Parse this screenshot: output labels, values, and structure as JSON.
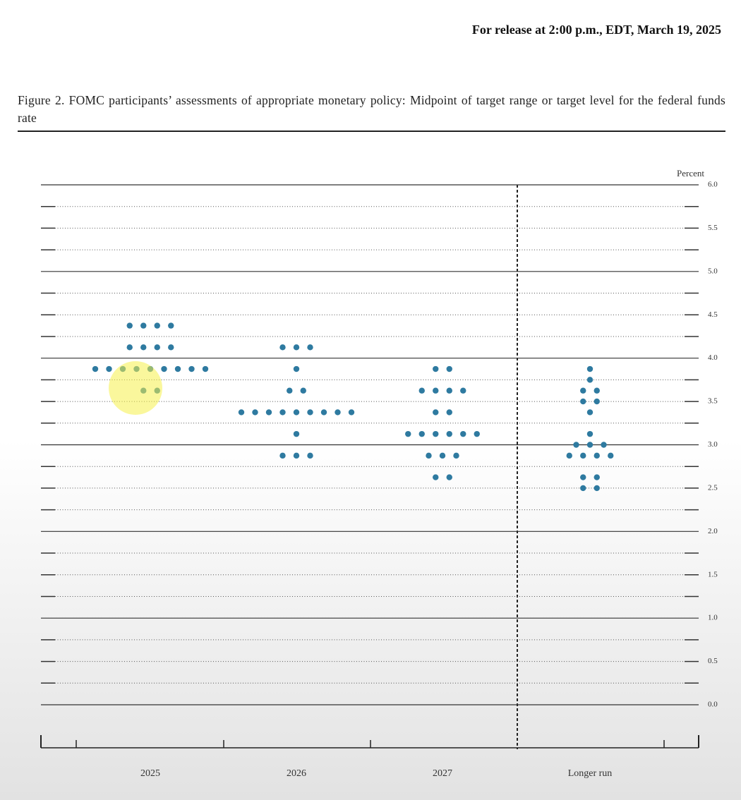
{
  "header": "For release at 2:00 p.m., EDT, March 19, 2025",
  "chart_data": {
    "type": "dot",
    "title": "Figure 2.  FOMC participants’ assessments of appropriate monetary policy:  Midpoint of target range or target level for the federal funds rate",
    "y_label": "Percent",
    "categories": [
      "2025",
      "2026",
      "2027",
      "Longer run"
    ],
    "values": [
      [
        4.375,
        4.375,
        4.375,
        4.375,
        4.125,
        4.125,
        4.125,
        4.125,
        3.875,
        3.875,
        3.875,
        3.875,
        3.875,
        3.875,
        3.875,
        3.875,
        3.875,
        3.625,
        3.625
      ],
      [
        4.125,
        4.125,
        4.125,
        3.875,
        3.625,
        3.625,
        3.375,
        3.375,
        3.375,
        3.375,
        3.375,
        3.375,
        3.375,
        3.375,
        3.375,
        3.125,
        2.875,
        2.875,
        2.875
      ],
      [
        3.875,
        3.875,
        3.625,
        3.625,
        3.625,
        3.625,
        3.375,
        3.375,
        3.125,
        3.125,
        3.125,
        3.125,
        3.125,
        3.125,
        2.875,
        2.875,
        2.875,
        2.625,
        2.625
      ],
      [
        3.875,
        3.75,
        3.625,
        3.625,
        3.5,
        3.5,
        3.375,
        3.125,
        3.0,
        3.0,
        3.0,
        2.875,
        2.875,
        2.875,
        2.875,
        2.625,
        2.625,
        2.5,
        2.5
      ]
    ],
    "color": "#2e7aa0",
    "ylim": [
      0,
      6
    ],
    "yticks": [
      {
        "value": 0,
        "label": "0.0"
      },
      0.5,
      {
        "value": 1,
        "label": "1.0"
      },
      1.5,
      {
        "value": 2,
        "label": "2.0"
      },
      2.5,
      {
        "value": 3,
        "label": "3.0"
      },
      3.5,
      {
        "value": 4,
        "label": "4.0"
      },
      4.5,
      {
        "value": 5,
        "label": "5.0"
      },
      5.5,
      {
        "value": 6,
        "label": "6.0"
      }
    ],
    "minor_yticks": [
      0.25,
      0.75,
      1.25,
      1.75,
      2.25,
      2.75,
      3.25,
      3.75,
      4.25,
      4.75,
      5.25,
      5.75
    ],
    "grid": true
  }
}
